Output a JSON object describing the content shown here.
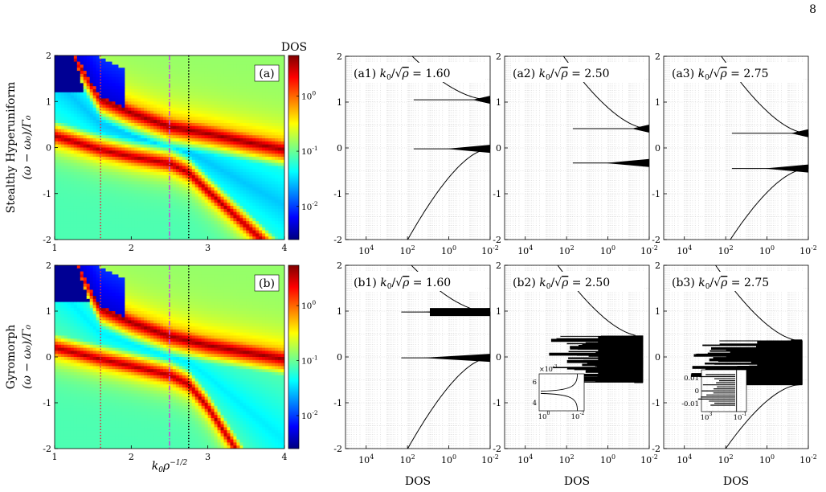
{
  "page_number": "8",
  "shared": {
    "heatmap_y_ticks": [
      "2",
      "1",
      "0",
      "-1",
      "-2"
    ],
    "heatmap_x_ticks": [
      "1",
      "2",
      "3",
      "4"
    ],
    "dos_y_ticks": [
      "2",
      "1",
      "0",
      "-1",
      "-2"
    ],
    "dos_x_ticks": [
      "10^4",
      "10^2",
      "10^0",
      "10^-2"
    ],
    "colorbar_title": "DOS",
    "colorbar_ticks": [
      "10^0",
      "10^-1",
      "10^-2"
    ],
    "heatmap_xlabel": "k₀ρ^−1/2",
    "dos_xlabel": "DOS",
    "row_ylabel_math": "(ω − ω₀)/Γ₀"
  },
  "rows": [
    {
      "row_label": "Stealthy Hyperuniform",
      "heatmap_tag": "(a)",
      "panels": [
        {
          "tag": "(a1)",
          "value": "1.60"
        },
        {
          "tag": "(a2)",
          "value": "2.50"
        },
        {
          "tag": "(a3)",
          "value": "2.75"
        }
      ]
    },
    {
      "row_label": "Gyromorph",
      "heatmap_tag": "(b)",
      "panels": [
        {
          "tag": "(b1)",
          "value": "1.60"
        },
        {
          "tag": "(b2)",
          "value": "2.50"
        },
        {
          "tag": "(b3)",
          "value": "2.75"
        }
      ]
    }
  ],
  "insets": [
    {
      "panel": "(b2)",
      "y_ticks": [
        "6",
        "4"
      ],
      "multiplier": "×10^-3",
      "x_ticks": [
        "10^0",
        "10^-2"
      ]
    },
    {
      "panel": "(b3)",
      "y_ticks": [
        "0.01",
        "0",
        "-0.01"
      ],
      "x_ticks": [
        "10^3",
        "10^-1"
      ]
    }
  ],
  "chart_data": [
    {
      "type": "heatmap",
      "panel": "(a)",
      "xlabel": "",
      "ylabel": "Stealthy Hyperuniform (ω − ω₀)/Γ₀",
      "xlim": [
        1,
        4
      ],
      "ylim": [
        -2,
        2
      ],
      "colorbar": {
        "label": "DOS",
        "scale": "log",
        "range": [
          0.005,
          5
        ]
      },
      "vertical_markers": [
        {
          "x": 1.6,
          "color": "#d8344a",
          "style": "dotted"
        },
        {
          "x": 2.5,
          "color": "#c050d8",
          "style": "dash-dot"
        },
        {
          "x": 2.75,
          "color": "#000000",
          "style": "dotted"
        }
      ],
      "bands": [
        {
          "name": "upper",
          "points": [
            [
              1.25,
              2.0
            ],
            [
              1.6,
              1.05
            ],
            [
              2.0,
              0.75
            ],
            [
              2.5,
              0.45
            ],
            [
              3.0,
              0.3
            ],
            [
              3.5,
              0.12
            ],
            [
              4.0,
              -0.05
            ]
          ]
        },
        {
          "name": "lower",
          "points": [
            [
              1.0,
              0.25
            ],
            [
              1.6,
              -0.05
            ],
            [
              2.0,
              -0.2
            ],
            [
              2.5,
              -0.35
            ],
            [
              2.75,
              -0.55
            ],
            [
              3.0,
              -0.95
            ],
            [
              3.3,
              -1.4
            ]
          ]
        }
      ]
    },
    {
      "type": "heatmap",
      "panel": "(b)",
      "xlabel": "k₀ρ^−1/2",
      "ylabel": "Gyromorph (ω − ω₀)/Γ₀",
      "xlim": [
        1,
        4
      ],
      "ylim": [
        -2,
        2
      ],
      "colorbar": {
        "label": "",
        "scale": "log",
        "range": [
          0.005,
          5
        ]
      },
      "vertical_markers": [
        {
          "x": 1.6,
          "color": "#d8344a",
          "style": "dotted"
        },
        {
          "x": 2.5,
          "color": "#c050d8",
          "style": "dash-dot"
        },
        {
          "x": 2.75,
          "color": "#000000",
          "style": "dotted"
        }
      ],
      "bands": [
        {
          "name": "upper",
          "points": [
            [
              1.3,
              2.0
            ],
            [
              1.6,
              1.05
            ],
            [
              2.0,
              0.75
            ],
            [
              2.5,
              0.45
            ],
            [
              3.0,
              0.25
            ],
            [
              3.5,
              0.1
            ],
            [
              4.0,
              -0.05
            ]
          ]
        },
        {
          "name": "lower",
          "points": [
            [
              1.0,
              0.2
            ],
            [
              1.6,
              -0.05
            ],
            [
              2.0,
              -0.2
            ],
            [
              2.5,
              -0.4
            ],
            [
              2.75,
              -0.6
            ],
            [
              3.0,
              -1.1
            ],
            [
              3.2,
              -1.6
            ]
          ]
        }
      ]
    },
    {
      "type": "line",
      "panel": "(a1)",
      "xscale": "log-reversed",
      "xlim": [
        100000,
        0.01
      ],
      "ylim": [
        -2,
        2
      ],
      "flat_value": 0.01,
      "edges": [
        -0.02,
        1.05
      ],
      "spikes": [],
      "noise": 0
    },
    {
      "type": "line",
      "panel": "(a2)",
      "xscale": "log-reversed",
      "xlim": [
        100000,
        0.01
      ],
      "ylim": [
        -2,
        2
      ],
      "flat_value": 0.01,
      "edges": [
        -0.33,
        0.42
      ],
      "spikes": [],
      "noise": 0
    },
    {
      "type": "line",
      "panel": "(a3)",
      "xscale": "log-reversed",
      "xlim": [
        100000,
        0.01
      ],
      "ylim": [
        -2,
        2
      ],
      "flat_value": 0.01,
      "edges": [
        -0.45,
        0.32
      ],
      "spikes": [],
      "noise": 0
    },
    {
      "type": "line",
      "panel": "(b1)",
      "xscale": "log-reversed",
      "xlim": [
        100000,
        0.01
      ],
      "ylim": [
        -2,
        2
      ],
      "flat_value": 0.01,
      "edges": [
        -0.02,
        0.98
      ],
      "spikes": [
        [
          0.95,
          1.0
        ],
        [
          0.0,
          0.0
        ]
      ],
      "noise": 0
    },
    {
      "type": "line",
      "panel": "(b2)",
      "xscale": "log-reversed",
      "xlim": [
        100000,
        0.01
      ],
      "ylim": [
        -2,
        2
      ],
      "flat_value": 0.02,
      "edges": [
        -0.55,
        0.45
      ],
      "spikes": [
        [
          -0.5,
          0.45
        ]
      ],
      "noise": 1
    },
    {
      "type": "line",
      "panel": "(b3)",
      "xscale": "log-reversed",
      "xlim": [
        100000,
        0.01
      ],
      "ylim": [
        -2,
        2
      ],
      "flat_value": 0.02,
      "edges": [
        -0.6,
        0.35
      ],
      "spikes": [
        [
          -0.55,
          0.35
        ]
      ],
      "noise": 2
    }
  ],
  "colors": {
    "red_marker": "#d8344a",
    "magenta_marker": "#c050d8",
    "black": "#000000",
    "grid": "#c8c8c8"
  }
}
